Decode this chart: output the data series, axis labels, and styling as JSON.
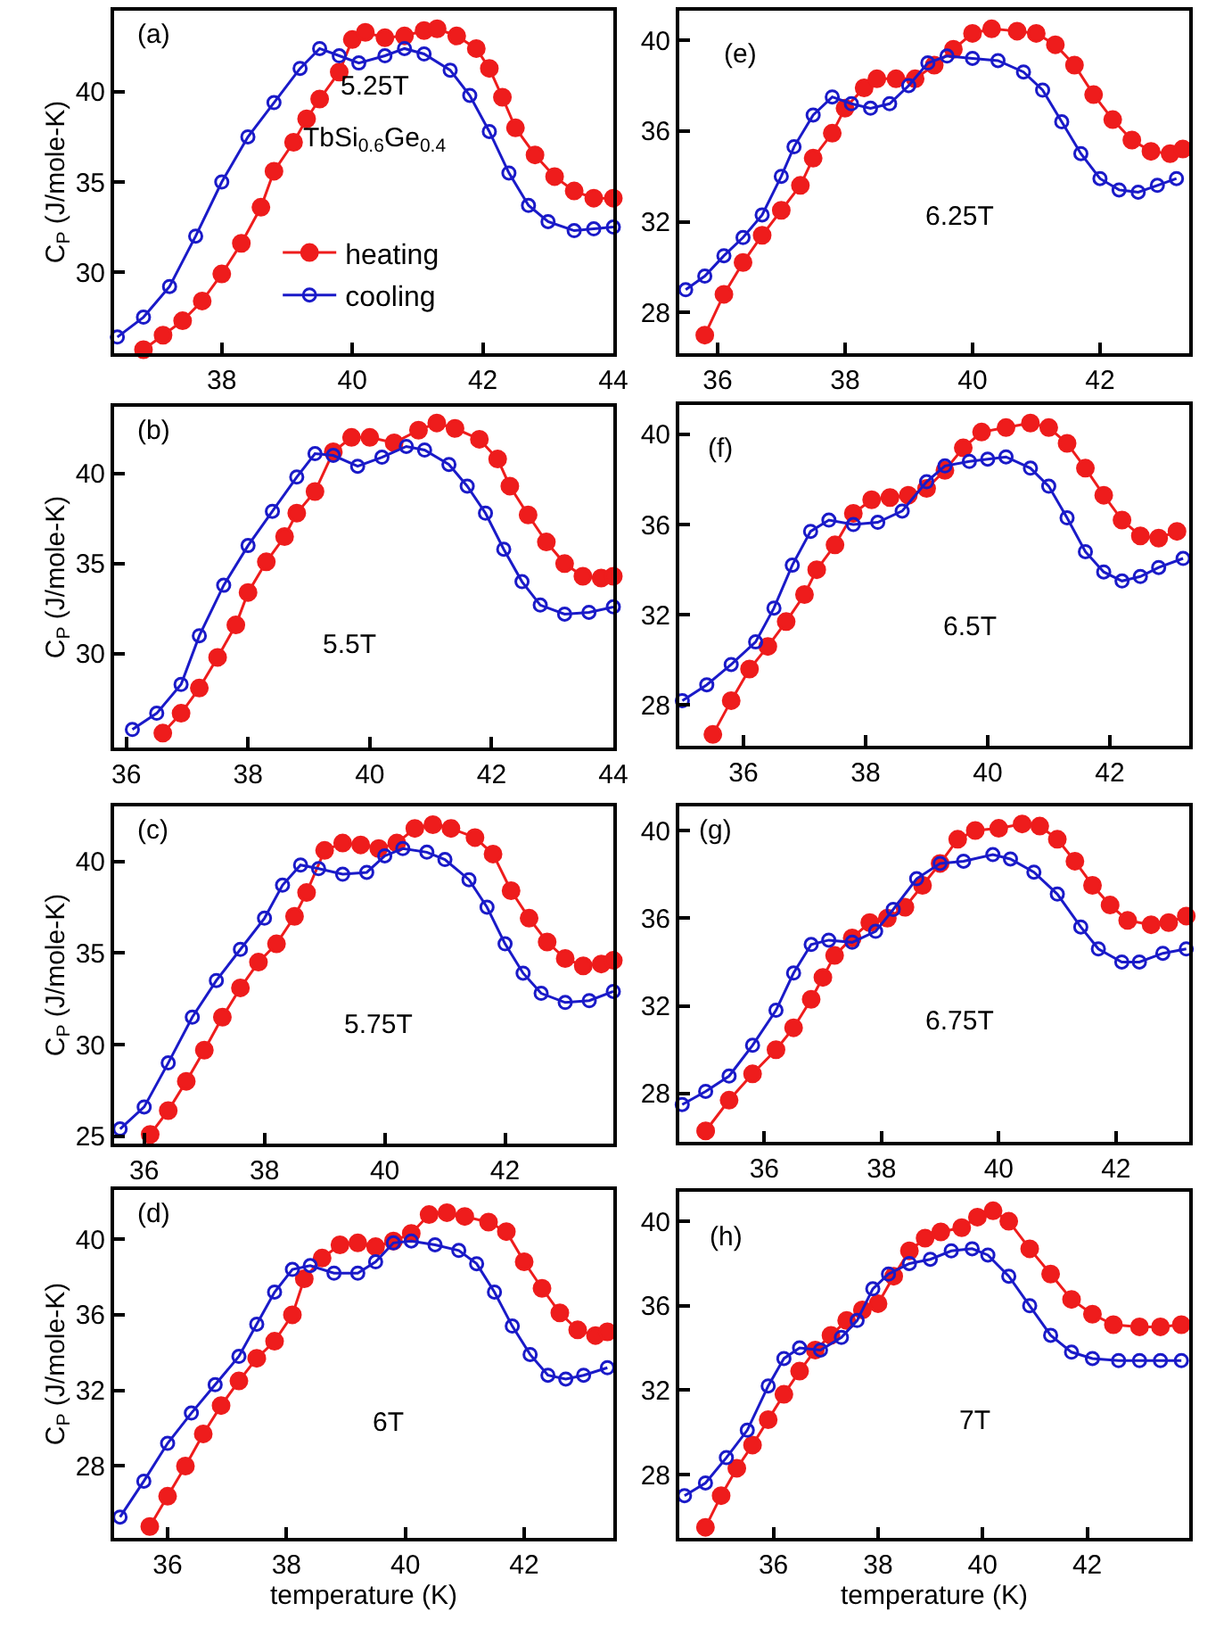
{
  "chart_data": [
    {
      "type": "line",
      "ylabel": "C$_{P}$ (J/mole-K)",
      "annotations": [
        "(a)",
        "5.25T",
        "TbSi$_{0.6}$Ge$_{0.4}$"
      ],
      "xlim": [
        36.35,
        44
      ],
      "ylim": [
        25.5,
        44.5
      ],
      "xticks": [
        38,
        40,
        42,
        44
      ],
      "yticks": [
        30,
        35,
        40
      ],
      "grid": false,
      "legend": "bottom",
      "marker": "circle",
      "line_style": "solid",
      "series": [
        {
          "name": "heating",
          "color": "#ee1c1c",
          "x": [
            36.8,
            37.1,
            37.4,
            37.7,
            38.0,
            38.3,
            38.6,
            38.8,
            39.1,
            39.3,
            39.5,
            39.8,
            40.0,
            40.2,
            40.5,
            40.8,
            41.1,
            41.3,
            41.6,
            41.9,
            42.1,
            42.3,
            42.5,
            42.8,
            43.1,
            43.4,
            43.7,
            44.0
          ],
          "values": [
            25.7,
            26.5,
            27.3,
            28.4,
            29.9,
            31.6,
            33.6,
            35.6,
            37.2,
            38.5,
            39.6,
            41.1,
            42.9,
            43.3,
            43.0,
            43.1,
            43.4,
            43.5,
            43.1,
            42.4,
            41.3,
            39.7,
            38.0,
            36.5,
            35.3,
            34.5,
            34.1,
            34.1
          ]
        },
        {
          "name": "cooling",
          "color": "#1a1ac8",
          "x": [
            36.4,
            36.8,
            37.2,
            37.6,
            38.0,
            38.4,
            38.8,
            39.2,
            39.5,
            39.8,
            40.1,
            40.5,
            40.8,
            41.1,
            41.5,
            41.8,
            42.1,
            42.4,
            42.7,
            43.0,
            43.4,
            43.7,
            44.0
          ],
          "values": [
            26.4,
            27.5,
            29.2,
            32.0,
            35.0,
            37.5,
            39.4,
            41.3,
            42.4,
            42.0,
            41.6,
            42.0,
            42.4,
            42.1,
            41.2,
            39.8,
            37.8,
            35.5,
            33.7,
            32.8,
            32.3,
            32.4,
            32.5
          ]
        }
      ]
    },
    {
      "type": "line",
      "ylabel": "C$_{P}$ (J/mole-K)",
      "annotations": [
        "(b)",
        "5.5T"
      ],
      "xlim": [
        35.8,
        44
      ],
      "ylim": [
        24.8,
        43.7
      ],
      "xticks": [
        36,
        38,
        40,
        42,
        44
      ],
      "yticks": [
        30,
        35,
        40
      ],
      "grid": false,
      "marker": "circle",
      "line_style": "solid",
      "series": [
        {
          "color": "#ee1c1c",
          "x": [
            36.6,
            36.9,
            37.2,
            37.5,
            37.8,
            38.0,
            38.3,
            38.6,
            38.8,
            39.1,
            39.4,
            39.7,
            40.0,
            40.4,
            40.8,
            41.1,
            41.4,
            41.8,
            42.1,
            42.3,
            42.6,
            42.9,
            43.2,
            43.5,
            43.8,
            44.0
          ],
          "values": [
            25.6,
            26.7,
            28.1,
            29.8,
            31.6,
            33.4,
            35.1,
            36.5,
            37.8,
            39.0,
            41.2,
            42.0,
            42.0,
            41.7,
            42.4,
            42.8,
            42.5,
            41.9,
            40.8,
            39.3,
            37.7,
            36.2,
            35.0,
            34.3,
            34.2,
            34.3
          ]
        },
        {
          "color": "#1a1ac8",
          "x": [
            36.1,
            36.5,
            36.9,
            37.2,
            37.6,
            38.0,
            38.4,
            38.8,
            39.1,
            39.4,
            39.8,
            40.2,
            40.6,
            40.9,
            41.3,
            41.6,
            41.9,
            42.2,
            42.5,
            42.8,
            43.2,
            43.6,
            44.0
          ],
          "values": [
            25.8,
            26.7,
            28.3,
            31.0,
            33.8,
            36.0,
            37.9,
            39.8,
            41.1,
            41.0,
            40.4,
            40.9,
            41.5,
            41.3,
            40.5,
            39.3,
            37.8,
            35.8,
            34.0,
            32.7,
            32.2,
            32.3,
            32.6
          ]
        }
      ]
    },
    {
      "type": "line",
      "ylabel": "C$_{P}$ (J/mole-K)",
      "annotations": [
        "(c)",
        "5.75T"
      ],
      "xlim": [
        35.5,
        43.8
      ],
      "ylim": [
        24.6,
        43.0
      ],
      "xticks": [
        36,
        38,
        40,
        42
      ],
      "yticks": [
        25,
        30,
        35,
        40
      ],
      "grid": false,
      "marker": "circle",
      "line_style": "solid",
      "series": [
        {
          "color": "#ee1c1c",
          "x": [
            36.1,
            36.4,
            36.7,
            37.0,
            37.3,
            37.6,
            37.9,
            38.2,
            38.5,
            38.7,
            39.0,
            39.3,
            39.6,
            39.9,
            40.2,
            40.5,
            40.8,
            41.1,
            41.5,
            41.8,
            42.1,
            42.4,
            42.7,
            43.0,
            43.3,
            43.6,
            43.8
          ],
          "values": [
            25.1,
            26.4,
            28.0,
            29.7,
            31.5,
            33.1,
            34.5,
            35.5,
            37.0,
            38.3,
            40.6,
            41.0,
            40.9,
            40.7,
            41.0,
            41.8,
            42.0,
            41.8,
            41.3,
            40.4,
            38.4,
            36.9,
            35.6,
            34.7,
            34.3,
            34.4,
            34.6
          ]
        },
        {
          "color": "#1a1ac8",
          "x": [
            35.6,
            36.0,
            36.4,
            36.8,
            37.2,
            37.6,
            38.0,
            38.3,
            38.6,
            38.9,
            39.3,
            39.7,
            40.0,
            40.3,
            40.7,
            41.0,
            41.4,
            41.7,
            42.0,
            42.3,
            42.6,
            43.0,
            43.4,
            43.8
          ],
          "values": [
            25.4,
            26.6,
            29.0,
            31.5,
            33.5,
            35.2,
            36.9,
            38.7,
            39.8,
            39.6,
            39.3,
            39.4,
            40.3,
            40.7,
            40.5,
            40.1,
            39.0,
            37.5,
            35.5,
            33.9,
            32.8,
            32.3,
            32.4,
            32.9
          ]
        }
      ]
    },
    {
      "type": "line",
      "xlabel": "temperature (K)",
      "ylabel": "C$_{P}$ (J/mole-K)",
      "annotations": [
        "(d)",
        "6T"
      ],
      "xlim": [
        35.1,
        43.5
      ],
      "ylim": [
        24.2,
        42.6
      ],
      "xticks": [
        36,
        38,
        40,
        42
      ],
      "yticks": [
        28,
        32,
        36,
        40
      ],
      "grid": false,
      "marker": "circle",
      "line_style": "solid",
      "series": [
        {
          "color": "#ee1c1c",
          "x": [
            35.7,
            36.0,
            36.3,
            36.6,
            36.9,
            37.2,
            37.5,
            37.8,
            38.1,
            38.3,
            38.6,
            38.9,
            39.2,
            39.5,
            39.8,
            40.1,
            40.4,
            40.7,
            41.0,
            41.4,
            41.7,
            42.0,
            42.3,
            42.6,
            42.9,
            43.2,
            43.4
          ],
          "values": [
            24.8,
            26.4,
            28.0,
            29.7,
            31.2,
            32.5,
            33.7,
            34.6,
            36.0,
            37.9,
            39.0,
            39.7,
            39.8,
            39.6,
            39.9,
            40.3,
            41.3,
            41.4,
            41.2,
            40.9,
            40.4,
            38.8,
            37.4,
            36.1,
            35.2,
            34.9,
            35.1
          ]
        },
        {
          "color": "#1a1ac8",
          "x": [
            35.2,
            35.6,
            36.0,
            36.4,
            36.8,
            37.2,
            37.5,
            37.8,
            38.1,
            38.4,
            38.8,
            39.2,
            39.5,
            39.8,
            40.1,
            40.5,
            40.9,
            41.2,
            41.5,
            41.8,
            42.1,
            42.4,
            42.7,
            43.0,
            43.4
          ],
          "values": [
            25.3,
            27.2,
            29.2,
            30.8,
            32.3,
            33.8,
            35.5,
            37.2,
            38.4,
            38.6,
            38.2,
            38.2,
            38.8,
            39.8,
            39.9,
            39.7,
            39.4,
            38.7,
            37.2,
            35.4,
            33.9,
            32.8,
            32.6,
            32.8,
            33.2
          ]
        }
      ]
    },
    {
      "type": "line",
      "annotations": [
        "(e)",
        "6.25T"
      ],
      "xlim": [
        35.4,
        43.4
      ],
      "ylim": [
        26.2,
        41.3
      ],
      "xticks": [
        36,
        38,
        40,
        42
      ],
      "yticks": [
        28,
        32,
        36,
        40
      ],
      "grid": false,
      "marker": "circle",
      "line_style": "solid",
      "series": [
        {
          "color": "#ee1c1c",
          "x": [
            35.8,
            36.1,
            36.4,
            36.7,
            37.0,
            37.3,
            37.5,
            37.8,
            38.0,
            38.3,
            38.5,
            38.8,
            39.1,
            39.4,
            39.7,
            40.0,
            40.3,
            40.7,
            41.0,
            41.3,
            41.6,
            41.9,
            42.2,
            42.5,
            42.8,
            43.1,
            43.3
          ],
          "values": [
            27.0,
            28.8,
            30.2,
            31.4,
            32.5,
            33.6,
            34.8,
            35.9,
            37.0,
            37.9,
            38.3,
            38.3,
            38.3,
            38.9,
            39.6,
            40.3,
            40.5,
            40.4,
            40.3,
            39.8,
            38.9,
            37.6,
            36.5,
            35.6,
            35.1,
            35.0,
            35.2
          ]
        },
        {
          "color": "#1a1ac8",
          "x": [
            35.5,
            35.8,
            36.1,
            36.4,
            36.7,
            37.0,
            37.2,
            37.5,
            37.8,
            38.1,
            38.4,
            38.7,
            39.0,
            39.3,
            39.6,
            40.0,
            40.4,
            40.8,
            41.1,
            41.4,
            41.7,
            42.0,
            42.3,
            42.6,
            42.9,
            43.2
          ],
          "values": [
            29.0,
            29.6,
            30.5,
            31.3,
            32.3,
            34.0,
            35.3,
            36.7,
            37.5,
            37.2,
            37.0,
            37.2,
            38.0,
            39.0,
            39.3,
            39.2,
            39.1,
            38.6,
            37.8,
            36.4,
            35.0,
            33.9,
            33.4,
            33.3,
            33.6,
            33.9
          ]
        }
      ]
    },
    {
      "type": "line",
      "annotations": [
        "(f)",
        "6.5T"
      ],
      "xlim": [
        34.95,
        43.3
      ],
      "ylim": [
        26.2,
        41.3
      ],
      "xticks": [
        36,
        38,
        40,
        42
      ],
      "yticks": [
        28,
        32,
        36,
        40
      ],
      "grid": false,
      "marker": "circle",
      "line_style": "solid",
      "series": [
        {
          "color": "#ee1c1c",
          "x": [
            35.5,
            35.8,
            36.1,
            36.4,
            36.7,
            37.0,
            37.2,
            37.5,
            37.8,
            38.1,
            38.4,
            38.7,
            39.0,
            39.3,
            39.6,
            39.9,
            40.3,
            40.7,
            41.0,
            41.3,
            41.6,
            41.9,
            42.2,
            42.5,
            42.8,
            43.1
          ],
          "values": [
            26.7,
            28.2,
            29.6,
            30.6,
            31.7,
            32.9,
            34.0,
            35.1,
            36.5,
            37.1,
            37.2,
            37.3,
            37.6,
            38.4,
            39.4,
            40.1,
            40.3,
            40.5,
            40.3,
            39.6,
            38.5,
            37.3,
            36.2,
            35.5,
            35.4,
            35.7
          ]
        },
        {
          "color": "#1a1ac8",
          "x": [
            35.0,
            35.4,
            35.8,
            36.2,
            36.5,
            36.8,
            37.1,
            37.4,
            37.8,
            38.2,
            38.6,
            39.0,
            39.3,
            39.7,
            40.0,
            40.3,
            40.7,
            41.0,
            41.3,
            41.6,
            41.9,
            42.2,
            42.5,
            42.8,
            43.2
          ],
          "values": [
            28.2,
            28.9,
            29.8,
            30.8,
            32.3,
            34.2,
            35.7,
            36.2,
            36.0,
            36.1,
            36.6,
            37.9,
            38.6,
            38.8,
            38.9,
            39.0,
            38.5,
            37.7,
            36.3,
            34.8,
            33.9,
            33.5,
            33.7,
            34.1,
            34.5
          ]
        }
      ]
    },
    {
      "type": "line",
      "annotations": [
        "(g)",
        "6.75T"
      ],
      "xlim": [
        34.55,
        43.25
      ],
      "ylim": [
        25.8,
        41.1
      ],
      "xticks": [
        36,
        38,
        40,
        42
      ],
      "yticks": [
        28,
        32,
        36,
        40
      ],
      "grid": false,
      "marker": "circle",
      "line_style": "solid",
      "series": [
        {
          "color": "#ee1c1c",
          "x": [
            35.0,
            35.4,
            35.8,
            36.2,
            36.5,
            36.8,
            37.0,
            37.2,
            37.5,
            37.8,
            38.1,
            38.4,
            38.7,
            39.0,
            39.3,
            39.6,
            40.0,
            40.4,
            40.7,
            41.0,
            41.3,
            41.6,
            41.9,
            42.2,
            42.6,
            42.9,
            43.2
          ],
          "values": [
            26.3,
            27.7,
            28.9,
            30.0,
            31.0,
            32.3,
            33.3,
            34.3,
            35.1,
            35.8,
            36.0,
            36.5,
            37.5,
            38.5,
            39.6,
            40.0,
            40.1,
            40.3,
            40.2,
            39.6,
            38.6,
            37.5,
            36.6,
            35.9,
            35.7,
            35.8,
            36.1
          ]
        },
        {
          "color": "#1a1ac8",
          "x": [
            34.6,
            35.0,
            35.4,
            35.8,
            36.2,
            36.5,
            36.8,
            37.1,
            37.5,
            37.9,
            38.2,
            38.6,
            39.0,
            39.4,
            39.9,
            40.2,
            40.6,
            41.0,
            41.4,
            41.7,
            42.1,
            42.4,
            42.8,
            43.2
          ],
          "values": [
            27.5,
            28.1,
            28.8,
            30.2,
            31.8,
            33.5,
            34.8,
            35.0,
            34.9,
            35.4,
            36.4,
            37.8,
            38.5,
            38.6,
            38.9,
            38.7,
            38.1,
            37.1,
            35.6,
            34.6,
            34.0,
            34.0,
            34.4,
            34.6
          ]
        }
      ]
    },
    {
      "type": "line",
      "xlabel": "temperature (K)",
      "annotations": [
        "(h)",
        "7T"
      ],
      "xlim": [
        34.2,
        43.95
      ],
      "ylim": [
        25.0,
        41.4
      ],
      "xticks": [
        36,
        38,
        40,
        42
      ],
      "yticks": [
        28,
        32,
        36,
        40
      ],
      "grid": false,
      "marker": "circle",
      "line_style": "solid",
      "series": [
        {
          "color": "#ee1c1c",
          "x": [
            34.7,
            35.0,
            35.3,
            35.6,
            35.9,
            36.2,
            36.5,
            36.8,
            37.1,
            37.4,
            37.7,
            38.0,
            38.3,
            38.6,
            38.9,
            39.2,
            39.6,
            39.9,
            40.2,
            40.5,
            40.9,
            41.3,
            41.7,
            42.1,
            42.5,
            43.0,
            43.4,
            43.8
          ],
          "values": [
            25.5,
            27.0,
            28.3,
            29.4,
            30.6,
            31.8,
            32.9,
            33.9,
            34.6,
            35.3,
            35.8,
            36.1,
            37.4,
            38.6,
            39.2,
            39.5,
            39.7,
            40.2,
            40.5,
            40.0,
            38.7,
            37.5,
            36.3,
            35.6,
            35.1,
            35.0,
            35.0,
            35.1
          ]
        },
        {
          "color": "#1a1ac8",
          "x": [
            34.3,
            34.7,
            35.1,
            35.5,
            35.9,
            36.2,
            36.5,
            36.9,
            37.3,
            37.6,
            37.9,
            38.2,
            38.6,
            39.0,
            39.4,
            39.8,
            40.1,
            40.5,
            40.9,
            41.3,
            41.7,
            42.1,
            42.6,
            43.0,
            43.4,
            43.8
          ],
          "values": [
            27.0,
            27.6,
            28.8,
            30.1,
            32.2,
            33.5,
            34.0,
            33.9,
            34.5,
            35.3,
            36.8,
            37.5,
            38.0,
            38.2,
            38.6,
            38.7,
            38.4,
            37.4,
            36.0,
            34.6,
            33.8,
            33.5,
            33.4,
            33.4,
            33.4,
            33.4
          ]
        }
      ]
    }
  ]
}
